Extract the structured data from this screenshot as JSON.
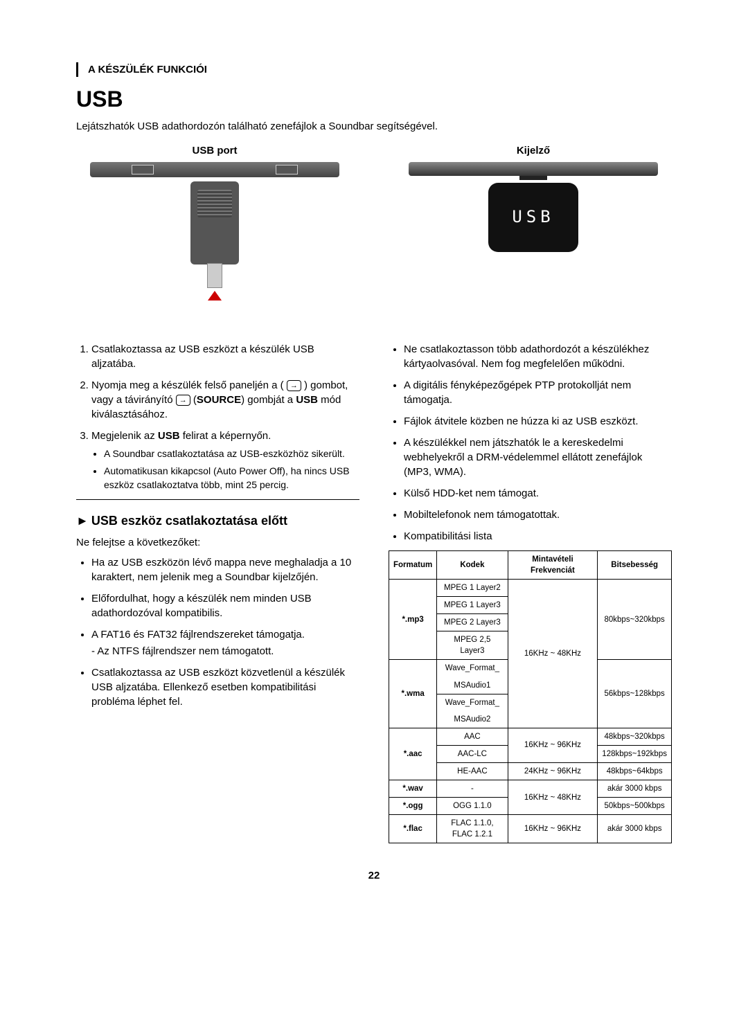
{
  "header": {
    "section_label": "A KÉSZÜLÉK FUNKCIÓI",
    "title": "USB",
    "intro": "Lejátszhatók USB adathordozón található zenefájlok a Soundbar segítségével."
  },
  "diagrams": {
    "left_label": "USB port",
    "right_label": "Kijelző",
    "display_text": "USB"
  },
  "steps": [
    {
      "text": "Csatlakoztassa az USB eszközt a készülék USB aljzatába."
    },
    {
      "html": "Nyomja meg a készülék felső paneljén a ( <span class='icon-source' data-name='source-icon' data-interactable='false'></span> ) gombot, vagy a távirányító <span class='icon-source' data-name='source-icon' data-interactable='false'></span> (<b>SOURCE</b>) gombját a <b>USB</b> mód kiválasztásához."
    },
    {
      "html": "Megjelenik az <b>USB</b> felirat a képernyőn.",
      "sub": [
        "A Soundbar csatlakoztatása az USB-eszközhöz sikerült.",
        "Automatikusan kikapcsol (Auto Power Off), ha nincs USB eszköz csatlakoztatva több, mint 25 percig."
      ]
    }
  ],
  "before_connect": {
    "heading": "USB eszköz csatlakoztatása előtt",
    "lead": "Ne felejtse a következőket:",
    "bullets": [
      {
        "text": "Ha az USB eszközön lévő mappa neve meghaladja a 10 karaktert, nem jelenik meg a Soundbar kijelzőjén."
      },
      {
        "text": "Előfordulhat, hogy a készülék nem minden USB adathordozóval kompatibilis."
      },
      {
        "text": "A FAT16 és FAT32 fájlrendszereket támogatja.",
        "note": "- Az NTFS fájlrendszer nem támogatott."
      },
      {
        "text": "Csatlakoztassa az USB eszközt közvetlenül a készülék USB aljzatába. Ellenkező esetben kompatibilitási probléma léphet fel."
      }
    ]
  },
  "right_bullets": [
    "Ne csatlakoztasson több adathordozót a készülékhez kártyaolvasóval. Nem fog megfelelően működni.",
    "A digitális fényképezőgépek PTP protokollját nem támogatja.",
    "Fájlok átvitele közben ne húzza ki az USB eszközt.",
    "A készülékkel nem játszhatók le a kereskedelmi webhelyekről a DRM-védelemmel ellátott zenefájlok (MP3, WMA).",
    "Külső HDD-ket nem támogat.",
    "Mobiltelefonok nem támogatottak.",
    "Kompatibilitási lista"
  ],
  "table": {
    "headers": [
      "Formatum",
      "Kodek",
      "Mintavételi Frekvenciát",
      "Bitsebesség"
    ],
    "rows": [
      {
        "format": "*.mp3",
        "codecs": [
          "MPEG 1 Layer2",
          "MPEG 1 Layer3",
          "MPEG 2 Layer3",
          "MPEG 2,5 Layer3"
        ],
        "freq": "16KHz ~ 48KHz",
        "bitrate": "80kbps~320kbps",
        "freq_rows": 8,
        "bit_rows": 4
      },
      {
        "format": "*.wma",
        "codecs": [
          "Wave_Format_MSAudio1",
          "Wave_Format_MSAudio2"
        ],
        "freq": null,
        "bitrate": "56kbps~128kbps",
        "bit_rows": 4,
        "codec_rows": [
          2,
          2
        ]
      },
      {
        "format": "*.aac",
        "codecs": [
          "AAC",
          "AAC-LC",
          "HE-AAC"
        ],
        "freqs": [
          "16KHz ~ 96KHz",
          "24KHz ~ 96KHz"
        ],
        "freq_spans": [
          2,
          1
        ],
        "bitrates": [
          "48kbps~320kbps",
          "128kbps~192kbps",
          "48kbps~64kbps"
        ]
      },
      {
        "format": "*.wav",
        "codecs": [
          "-"
        ],
        "freq": "16KHz ~ 48KHz",
        "bitrate": "akár 3000 kbps",
        "freq_rows": 2
      },
      {
        "format": "*.ogg",
        "codecs": [
          "OGG 1.1.0"
        ],
        "freq": null,
        "bitrate": "50kbps~500kbps"
      },
      {
        "format": "*.flac",
        "codecs": [
          "FLAC 1.1.0, FLAC 1.2.1"
        ],
        "freq": "16KHz ~ 96KHz",
        "bitrate": "akár 3000 kbps"
      }
    ]
  },
  "page_number": "22",
  "colors": {
    "text": "#000000",
    "accent_red": "#c00",
    "display_bg": "#111111",
    "display_fg": "#ffffff"
  },
  "typography": {
    "body_font": "Arial",
    "body_size_pt": 11,
    "h1_size_pt": 24,
    "table_size_pt": 8.5
  }
}
